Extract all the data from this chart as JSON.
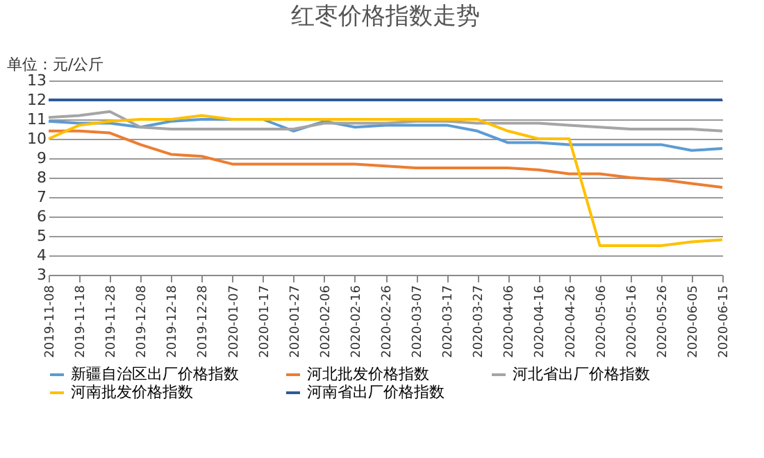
{
  "chart_data": {
    "type": "line",
    "title": "红枣价格指数走势",
    "annotations": [
      "单位：元/公斤"
    ],
    "categories": [
      "2019-11-08",
      "2019-11-18",
      "2019-11-28",
      "2019-12-08",
      "2019-12-18",
      "2019-12-28",
      "2020-01-07",
      "2020-01-17",
      "2020-01-27",
      "2020-02-06",
      "2020-02-16",
      "2020-02-26",
      "2020-03-07",
      "2020-03-17",
      "2020-03-27",
      "2020-04-06",
      "2020-04-16",
      "2020-04-26",
      "2020-05-06",
      "2020-05-16",
      "2020-05-26",
      "2020-06-05",
      "2020-06-15"
    ],
    "series": [
      {
        "name": "新疆自治区出厂价格指数",
        "color": "#5b9bd5",
        "values": [
          10.9,
          10.8,
          10.8,
          10.6,
          10.9,
          11.0,
          11.0,
          11.0,
          10.4,
          10.9,
          10.6,
          10.7,
          10.7,
          10.7,
          10.4,
          9.8,
          9.8,
          9.7,
          9.7,
          9.7,
          9.7,
          9.4,
          9.5
        ]
      },
      {
        "name": "河北批发价格指数",
        "color": "#ed7d31",
        "values": [
          10.4,
          10.4,
          10.3,
          9.7,
          9.2,
          9.1,
          8.7,
          8.7,
          8.7,
          8.7,
          8.7,
          8.6,
          8.5,
          8.5,
          8.5,
          8.5,
          8.4,
          8.2,
          8.2,
          8.0,
          7.9,
          7.7,
          7.5
        ]
      },
      {
        "name": "河北省出厂价格指数",
        "color": "#a5a5a5",
        "values": [
          11.1,
          11.2,
          11.4,
          10.6,
          10.5,
          10.5,
          10.5,
          10.5,
          10.5,
          10.8,
          10.8,
          10.8,
          10.9,
          10.9,
          10.8,
          10.8,
          10.8,
          10.7,
          10.6,
          10.5,
          10.5,
          10.5,
          10.4
        ]
      },
      {
        "name": "河南批发价格指数",
        "color": "#ffc000",
        "values": [
          10.0,
          10.7,
          10.9,
          11.0,
          11.0,
          11.2,
          11.0,
          11.0,
          11.0,
          11.0,
          11.0,
          11.0,
          11.0,
          11.0,
          11.0,
          10.4,
          10.0,
          10.0,
          4.5,
          4.5,
          4.5,
          4.7,
          4.8
        ]
      },
      {
        "name": "河南省出厂价格指数",
        "color": "#2e5b9a",
        "values": [
          12,
          12,
          12,
          12,
          12,
          12,
          12,
          12,
          12,
          12,
          12,
          12,
          12,
          12,
          12,
          12,
          12,
          12,
          12,
          12,
          12,
          12,
          12
        ]
      }
    ],
    "ylim": [
      3,
      13
    ],
    "yticks": [
      3,
      4,
      5,
      6,
      7,
      8,
      9,
      10,
      11,
      12,
      13
    ],
    "grid": "y",
    "legend": "bottom",
    "line_style": "solid",
    "marker": "none"
  }
}
